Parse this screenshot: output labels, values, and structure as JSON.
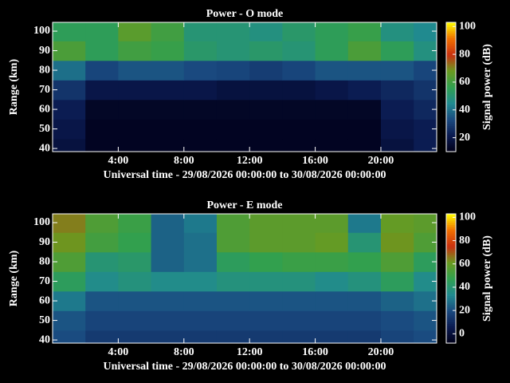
{
  "chart_data": [
    {
      "type": "heatmap",
      "title": "Power - O mode",
      "xlabel": "Universal time - 29/08/2026 00:00:00 to 30/08/2026 00:00:00",
      "ylabel": "Range (km)",
      "colorbar_label": "Signal power (dB)",
      "xlim": [
        0,
        23.4
      ],
      "ylim": [
        38.4,
        104.5
      ],
      "clim": [
        10,
        103
      ],
      "xticks": [
        {
          "value": 4,
          "label": "4:00"
        },
        {
          "value": 8,
          "label": "8:00"
        },
        {
          "value": 12,
          "label": "12:00"
        },
        {
          "value": 16,
          "label": "16:00"
        },
        {
          "value": 20,
          "label": "20:00"
        }
      ],
      "yticks": [
        40,
        50,
        60,
        70,
        80,
        90,
        100
      ],
      "cticks": [
        20,
        40,
        60,
        80,
        100
      ],
      "colormap": [
        "#000018",
        "#0a1a50",
        "#1a4a80",
        "#208a90",
        "#30a050",
        "#6a9a20",
        "#c83010",
        "#f07000",
        "#ffff00"
      ],
      "xbins": [
        0,
        2,
        4,
        6,
        8,
        10,
        12,
        14,
        16,
        18,
        20,
        22,
        23.4
      ],
      "ybins": [
        38.4,
        45,
        55,
        65,
        75,
        85,
        95,
        104.5
      ],
      "z": [
        [
          18,
          12,
          12,
          12,
          12,
          12,
          12,
          12,
          12,
          12,
          18,
          22
        ],
        [
          20,
          12,
          12,
          12,
          12,
          12,
          12,
          12,
          12,
          12,
          20,
          22
        ],
        [
          22,
          13,
          13,
          13,
          13,
          13,
          13,
          13,
          13,
          13,
          22,
          25
        ],
        [
          28,
          20,
          20,
          20,
          20,
          18,
          18,
          18,
          20,
          22,
          25,
          28
        ],
        [
          40,
          32,
          35,
          35,
          33,
          32,
          30,
          32,
          35,
          35,
          35,
          32
        ],
        [
          62,
          55,
          60,
          58,
          52,
          50,
          52,
          50,
          55,
          62,
          55,
          48
        ],
        [
          55,
          55,
          65,
          60,
          50,
          50,
          48,
          52,
          55,
          58,
          48,
          45
        ]
      ]
    },
    {
      "type": "heatmap",
      "title": "Power - E mode",
      "xlabel": "Universal time - 29/08/2026 00:00:00 to 30/08/2026 00:00:00",
      "ylabel": "Range (km)",
      "colorbar_label": "Signal power (dB)",
      "xlim": [
        0,
        23.4
      ],
      "ylim": [
        38.4,
        104.5
      ],
      "clim": [
        -8,
        103
      ],
      "xticks": [
        {
          "value": 4,
          "label": "4:00"
        },
        {
          "value": 8,
          "label": "8:00"
        },
        {
          "value": 12,
          "label": "12:00"
        },
        {
          "value": 16,
          "label": "16:00"
        },
        {
          "value": 20,
          "label": "20:00"
        }
      ],
      "yticks": [
        40,
        50,
        60,
        70,
        80,
        90,
        100
      ],
      "cticks": [
        0,
        20,
        40,
        60,
        80,
        100
      ],
      "colormap": [
        "#000018",
        "#0a1a50",
        "#1a4a80",
        "#208a90",
        "#30a050",
        "#6a9a20",
        "#c83010",
        "#f07000",
        "#ffff00"
      ],
      "xbins": [
        0,
        2,
        4,
        6,
        8,
        10,
        12,
        14,
        16,
        18,
        20,
        22,
        23.4
      ],
      "ybins": [
        38.4,
        45,
        55,
        65,
        75,
        85,
        95,
        104.5
      ],
      "z": [
        [
          20,
          15,
          15,
          15,
          15,
          15,
          15,
          15,
          15,
          15,
          18,
          20
        ],
        [
          22,
          18,
          18,
          18,
          18,
          18,
          18,
          18,
          18,
          18,
          20,
          22
        ],
        [
          30,
          22,
          22,
          22,
          22,
          22,
          22,
          22,
          22,
          22,
          25,
          28
        ],
        [
          45,
          35,
          38,
          35,
          35,
          38,
          38,
          38,
          35,
          38,
          45,
          35
        ],
        [
          55,
          40,
          42,
          25,
          28,
          45,
          48,
          50,
          50,
          48,
          55,
          45
        ],
        [
          62,
          52,
          48,
          25,
          28,
          55,
          58,
          58,
          60,
          40,
          62,
          55
        ],
        [
          65,
          55,
          50,
          25,
          30,
          55,
          58,
          58,
          58,
          30,
          60,
          58
        ]
      ]
    }
  ]
}
